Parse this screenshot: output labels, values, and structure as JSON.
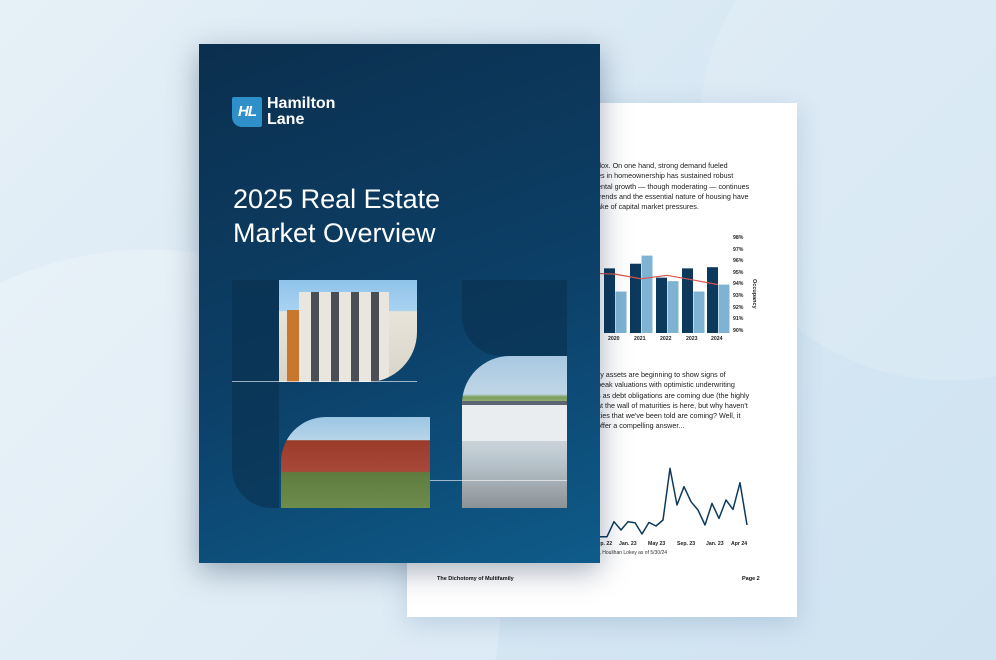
{
  "cover": {
    "logo_mark": "HL",
    "logo_line1": "Hamilton",
    "logo_line2": "Lane",
    "title_line1": "2025 Real Estate",
    "title_line2": "Market Overview"
  },
  "page2": {
    "paragraph1": [
      "dox. On one hand, strong demand fueled",
      "es in homeownership has sustained robust",
      "ental growth — though moderating — continues",
      "trends and the essential nature of housing have",
      "ake of capital market pressures."
    ],
    "paragraph2": [
      "ily assets are beginning to show signs of",
      "peak valuations with optimistic underwriting",
      "s as debt obligations are coming due (the highly",
      "at the wall of maturities is here, but why haven't",
      "ities that we've been told are coming? Well, it",
      "offer a compelling answer..."
    ],
    "bar_chart": {
      "categories": [
        "2020",
        "2021",
        "2022",
        "2023",
        "2024"
      ],
      "right_axis_label": "Occupancy",
      "right_axis_ticks": [
        "98%",
        "97%",
        "96%",
        "95%",
        "94%",
        "93%",
        "92%",
        "91%",
        "90%"
      ],
      "series_dark": [
        95.4,
        95.8,
        94.6,
        95.4,
        95.5
      ],
      "series_light": [
        93.4,
        96.5,
        94.3,
        93.4,
        94.0
      ],
      "occupancy_line": [
        94.9,
        94.5,
        94.8,
        94.4,
        94.0
      ],
      "colors": {
        "dark": "#0d3a5c",
        "light": "#7fb3d3",
        "line": "#d9534f"
      }
    },
    "line_chart": {
      "x_ticks": [
        "Sep. 22",
        "Jan. 23",
        "May 23",
        "Sep. 23",
        "Jan. 23",
        "Apr 24"
      ],
      "values": [
        1,
        1,
        5.5,
        3,
        5.5,
        5.2,
        1.8,
        5.3,
        4.2,
        6,
        21.5,
        10.5,
        16,
        11.5,
        9,
        4.5,
        11,
        6.5,
        12,
        9.2,
        17.2,
        4.5
      ],
      "color": "#0d3a5c"
    },
    "source": "s, Houlihan Lokey as of 5/30/24",
    "footer_title": "The Dichotomy of Multifamily",
    "footer_page": "Page 2"
  }
}
